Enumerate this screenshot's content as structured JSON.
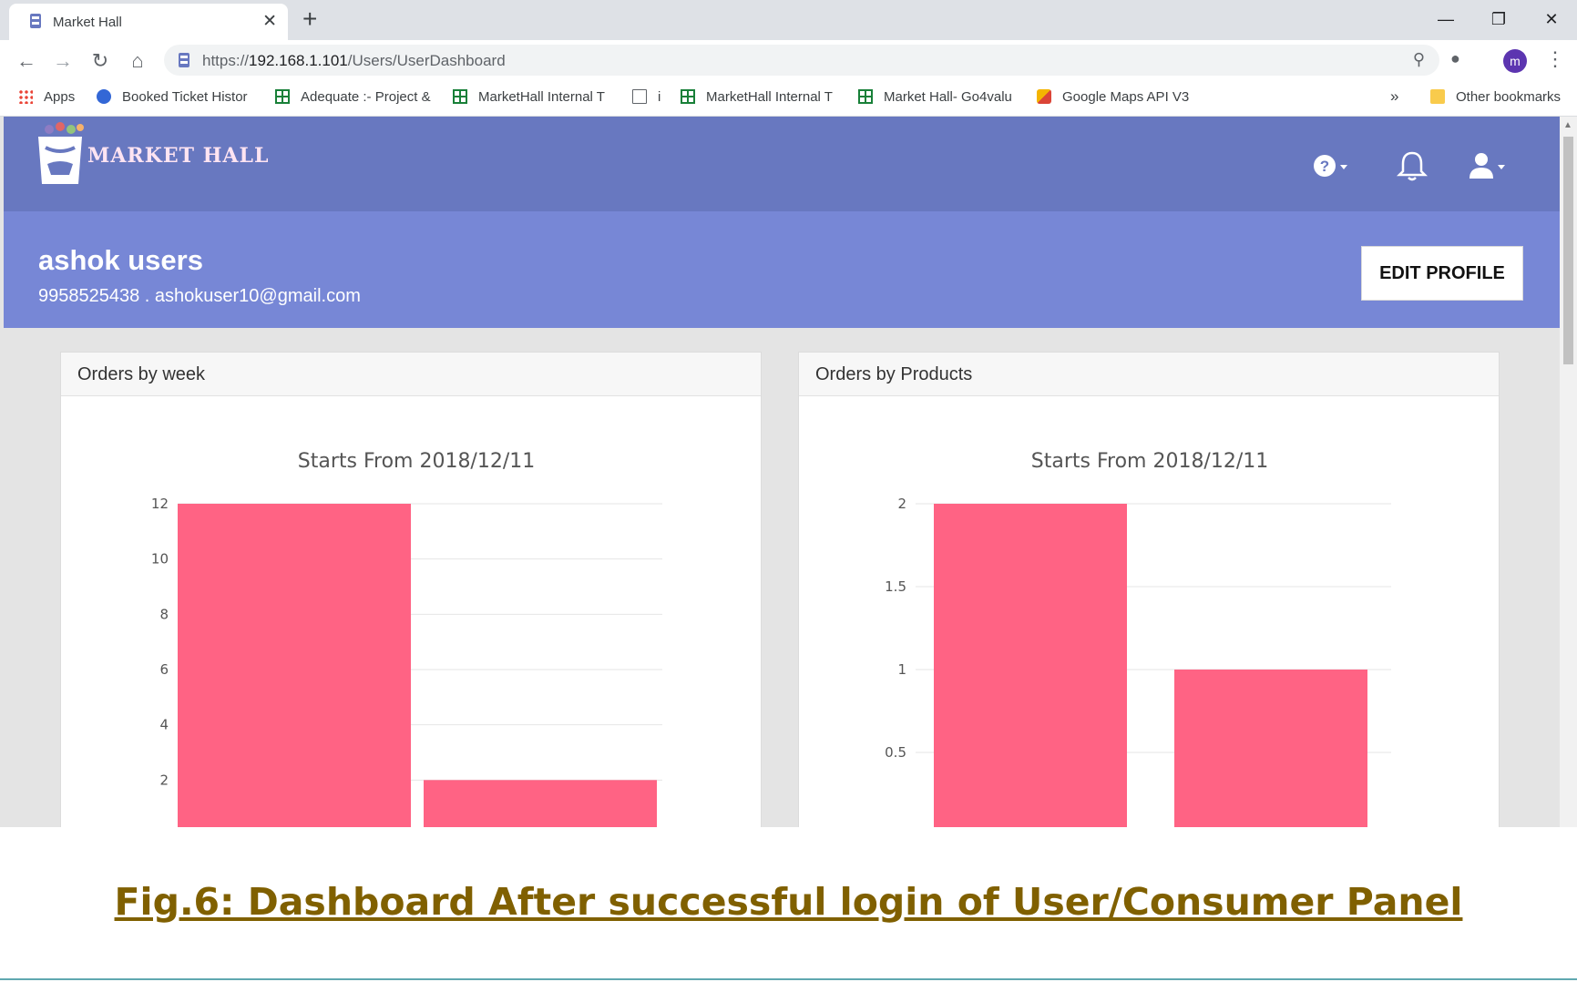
{
  "browser": {
    "tab_title": "Market Hall",
    "tab_close": "✕",
    "new_tab": "+",
    "url_scheme": "https://",
    "url_host": "192.168.1.101",
    "url_path": "/Users/UserDashboard",
    "profile_initial": "m",
    "bookmarks_overflow": "»",
    "bookmarks": [
      {
        "label": "Apps",
        "icon": "apps-icon"
      },
      {
        "label": "Booked Ticket Histor",
        "icon": "ticket-icon"
      },
      {
        "label": "Adequate :- Project &",
        "icon": "sheet-icon"
      },
      {
        "label": "MarketHall Internal T",
        "icon": "sheet-icon"
      },
      {
        "label": "i",
        "icon": "doc-icon"
      },
      {
        "label": "MarketHall Internal T",
        "icon": "sheet-icon"
      },
      {
        "label": "Market Hall- Go4valu",
        "icon": "sheet-icon"
      },
      {
        "label": "Google Maps API V3",
        "icon": "maps-icon"
      }
    ],
    "other_bookmarks": "Other bookmarks"
  },
  "app": {
    "logo_text": "MARKET HALL",
    "colors": {
      "header": "#6878c0",
      "band": "#7787d6",
      "bar": "#ff6384"
    }
  },
  "profile": {
    "name": "ashok users",
    "contact": "9958525438 . ashokuser10@gmail.com",
    "edit_label": "EDIT PROFILE"
  },
  "cards": {
    "week": {
      "title": "Orders by week"
    },
    "products": {
      "title": "Orders by Products"
    }
  },
  "chart_data": [
    {
      "type": "bar",
      "title": "Starts From 2018/12/11",
      "categories": [
        "",
        ""
      ],
      "values": [
        12,
        2
      ],
      "yticks": [
        2,
        4,
        6,
        8,
        10,
        12
      ],
      "ylim": [
        0,
        12
      ],
      "grid": true,
      "color": "#ff6384"
    },
    {
      "type": "bar",
      "title": "Starts From 2018/12/11",
      "categories": [
        "",
        ""
      ],
      "values": [
        2,
        1
      ],
      "yticks": [
        0.5,
        1,
        1.5,
        2
      ],
      "ylim": [
        0,
        2
      ],
      "grid": true,
      "color": "#ff6384"
    }
  ],
  "caption": "Fig.6: Dashboard After successful login of User/Consumer Panel"
}
